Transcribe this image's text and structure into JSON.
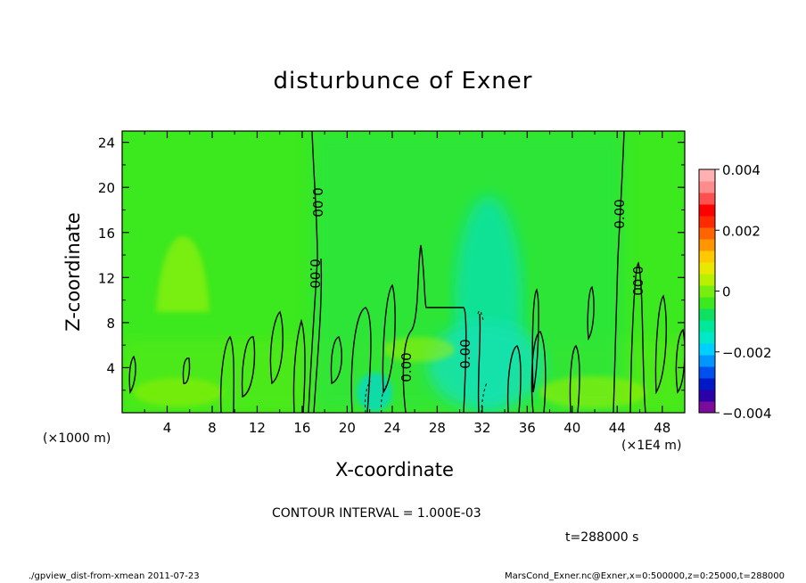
{
  "chart_data": {
    "type": "heatmap",
    "title": "disturbunce of Exner",
    "xlabel": "X-coordinate",
    "ylabel": "Z-coordinate",
    "x_unit_label": "(×1E4 m)",
    "y_unit_label": "(×1000 m)",
    "xlim": [
      0,
      50
    ],
    "ylim": [
      0,
      25
    ],
    "x_ticks": [
      4,
      8,
      12,
      16,
      20,
      24,
      28,
      32,
      36,
      40,
      44,
      48
    ],
    "y_ticks": [
      4,
      8,
      12,
      16,
      20,
      24
    ],
    "colorbar": {
      "min": -0.004,
      "max": 0.004,
      "tick_labels": [
        "0.004",
        "0.002",
        "0",
        "−0.002",
        "−0.004"
      ],
      "colors": [
        "#7b0b9a",
        "#2a00a8",
        "#0019c8",
        "#0050f0",
        "#0096ff",
        "#00d0ff",
        "#00e8c8",
        "#00e89a",
        "#10e060",
        "#3ce81e",
        "#78ee10",
        "#b8f000",
        "#e8e800",
        "#ffc800",
        "#ff9600",
        "#ff6400",
        "#ff2a00",
        "#ff0000",
        "#ff5050",
        "#ff8c8c",
        "#ffb0b0"
      ]
    },
    "contour_interval_text": "CONTOUR INTERVAL = 1.000E-03",
    "contour_labels": [
      "0.00",
      "0.00",
      "0.00",
      "0.00",
      "0.00",
      "0.00"
    ],
    "background_level": 0.0,
    "features": [
      {
        "kind": "positive anomaly",
        "x_center": 5.5,
        "z_center": 11,
        "value": 0.0005
      },
      {
        "kind": "negative anomaly",
        "x_center": 32.5,
        "z_center": 11,
        "value": -0.0007
      },
      {
        "kind": "zero contour",
        "x": 17,
        "z_from": 0,
        "z_to": 25
      },
      {
        "kind": "zero contour",
        "x": 44.5,
        "z_from": 0,
        "z_to": 25
      }
    ]
  },
  "time_label": "t=288000 s",
  "footer_left": "./gpview_dist-from-xmean  2011-07-23",
  "footer_right": "MarsCond_Exner.nc@Exner,x=0:500000,z=0:25000,t=288000"
}
